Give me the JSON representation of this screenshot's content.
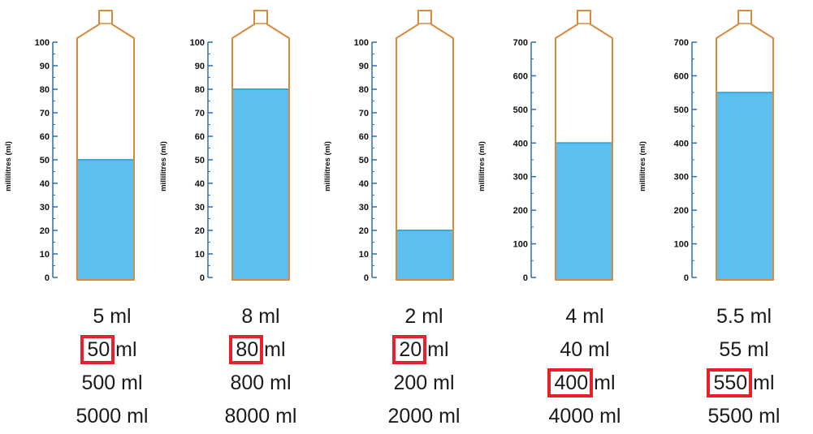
{
  "axis_label": "millilitres (ml)",
  "colors": {
    "water": "#5bc0f0",
    "water_edge": "#3aa7dd",
    "outline": "#d98a3c",
    "axis": "#2b6fb0",
    "highlight": "#e8202a"
  },
  "cylinders": [
    {
      "ticks": [
        "0",
        "10",
        "20",
        "30",
        "40",
        "50",
        "60",
        "70",
        "80",
        "90",
        "100"
      ],
      "max": 100,
      "fill": 50,
      "answers": [
        "5 ml",
        "50 ml",
        "500 ml",
        "5000 ml"
      ],
      "highlight_row": 1,
      "highlight_text": "50"
    },
    {
      "ticks": [
        "0",
        "10",
        "20",
        "30",
        "40",
        "50",
        "60",
        "70",
        "80",
        "90",
        "100"
      ],
      "max": 100,
      "fill": 80,
      "answers": [
        "8 ml",
        "80 ml",
        "800 ml",
        "8000 ml"
      ],
      "highlight_row": 1,
      "highlight_text": "80"
    },
    {
      "ticks": [
        "0",
        "10",
        "20",
        "30",
        "40",
        "50",
        "60",
        "70",
        "80",
        "90",
        "100"
      ],
      "max": 100,
      "fill": 20,
      "answers": [
        "2 ml",
        "20 ml",
        "200 ml",
        "2000 ml"
      ],
      "highlight_row": 1,
      "highlight_text": "20"
    },
    {
      "ticks": [
        "0",
        "100",
        "200",
        "300",
        "400",
        "500",
        "600",
        "700"
      ],
      "max": 700,
      "fill": 400,
      "answers": [
        "4 ml",
        "40 ml",
        "400 ml",
        "4000 ml"
      ],
      "highlight_row": 2,
      "highlight_text": "400"
    },
    {
      "ticks": [
        "0",
        "100",
        "200",
        "300",
        "400",
        "500",
        "600",
        "700"
      ],
      "max": 700,
      "fill": 550,
      "answers": [
        "5.5 ml",
        "55 ml",
        "550 ml",
        "5500 ml"
      ],
      "highlight_row": 2,
      "highlight_text": "550"
    }
  ]
}
